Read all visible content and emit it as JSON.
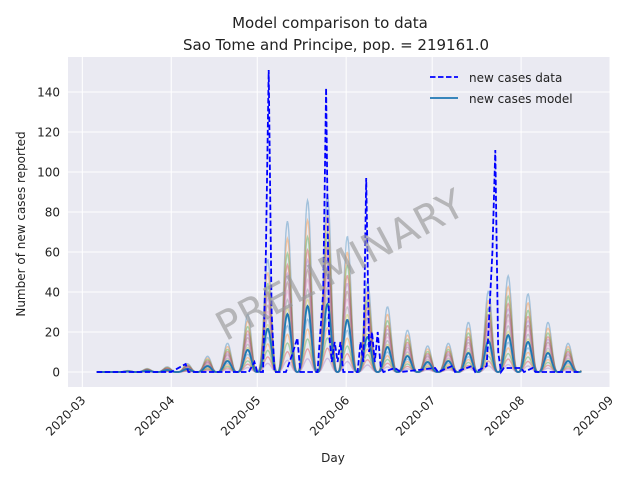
{
  "chart_data": {
    "type": "line",
    "title": "Model comparison to data",
    "subtitle": "Sao Tome and Principe, pop. = 219161.0",
    "xlabel": "Day",
    "ylabel": "Number of new cases reported",
    "xlim": [
      "2020-02-25",
      "2020-09-01"
    ],
    "ylim": [
      -7.5,
      157.5
    ],
    "x_ticks": [
      "2020-03",
      "2020-04",
      "2020-05",
      "2020-06",
      "2020-07",
      "2020-08",
      "2020-09"
    ],
    "y_ticks": [
      0,
      20,
      40,
      60,
      80,
      100,
      120,
      140
    ],
    "grid": true,
    "legend_position": "top-right",
    "watermark": "PRELIMINARY",
    "colors": {
      "background": "#eaeaf2",
      "grid": "#ffffff",
      "data": "#0000ff",
      "model": "#1f77b4",
      "ensemble": [
        "#1f77b4",
        "#ff7f0e",
        "#2ca02c",
        "#d62728",
        "#9467bd",
        "#8c564b",
        "#e377c2",
        "#7f7f7f",
        "#bcbd22",
        "#17becf"
      ]
    },
    "series": [
      {
        "name": "new cases data",
        "style": "dashed",
        "points": [
          [
            "2020-03-06",
            0
          ],
          [
            "2020-04-01",
            0
          ],
          [
            "2020-04-06",
            4
          ],
          [
            "2020-04-07",
            0
          ],
          [
            "2020-04-28",
            0
          ],
          [
            "2020-04-30",
            5
          ],
          [
            "2020-05-01",
            0
          ],
          [
            "2020-05-03",
            0
          ],
          [
            "2020-05-04",
            60
          ],
          [
            "2020-05-05",
            151
          ],
          [
            "2020-05-06",
            30
          ],
          [
            "2020-05-07",
            0
          ],
          [
            "2020-05-11",
            0
          ],
          [
            "2020-05-13",
            8
          ],
          [
            "2020-05-15",
            17
          ],
          [
            "2020-05-16",
            0
          ],
          [
            "2020-05-22",
            0
          ],
          [
            "2020-05-24",
            40
          ],
          [
            "2020-05-25",
            142
          ],
          [
            "2020-05-26",
            20
          ],
          [
            "2020-05-27",
            5
          ],
          [
            "2020-05-28",
            15
          ],
          [
            "2020-05-29",
            5
          ],
          [
            "2020-05-30",
            15
          ],
          [
            "2020-05-31",
            0
          ],
          [
            "2020-06-05",
            0
          ],
          [
            "2020-06-06",
            15
          ],
          [
            "2020-06-07",
            5
          ],
          [
            "2020-06-08",
            97
          ],
          [
            "2020-06-09",
            10
          ],
          [
            "2020-06-10",
            20
          ],
          [
            "2020-06-11",
            5
          ],
          [
            "2020-06-12",
            20
          ],
          [
            "2020-06-13",
            3
          ],
          [
            "2020-06-14",
            0
          ],
          [
            "2020-06-18",
            2
          ],
          [
            "2020-06-20",
            0
          ],
          [
            "2020-07-02",
            2
          ],
          [
            "2020-07-03",
            0
          ],
          [
            "2020-07-08",
            3
          ],
          [
            "2020-07-09",
            0
          ],
          [
            "2020-07-15",
            3
          ],
          [
            "2020-07-16",
            0
          ],
          [
            "2020-07-20",
            3
          ],
          [
            "2020-07-22",
            60
          ],
          [
            "2020-07-23",
            111
          ],
          [
            "2020-07-24",
            10
          ],
          [
            "2020-07-25",
            0
          ],
          [
            "2020-07-26",
            2
          ],
          [
            "2020-08-01",
            2
          ],
          [
            "2020-08-02",
            0
          ],
          [
            "2020-08-05",
            2
          ],
          [
            "2020-08-06",
            0
          ],
          [
            "2020-08-21",
            0
          ]
        ]
      },
      {
        "name": "new cases model",
        "style": "solid",
        "shape": "weekly-pulses",
        "start": "2020-03-06",
        "end": "2020-08-22",
        "period_days": 7,
        "peaks": [
          [
            "2020-03-06",
            0
          ],
          [
            "2020-03-13",
            0
          ],
          [
            "2020-03-20",
            0.5
          ],
          [
            "2020-03-27",
            0.8
          ],
          [
            "2020-04-03",
            1.2
          ],
          [
            "2020-04-10",
            2
          ],
          [
            "2020-04-17",
            4
          ],
          [
            "2020-04-24",
            7
          ],
          [
            "2020-05-01",
            15
          ],
          [
            "2020-05-08",
            28
          ],
          [
            "2020-05-15",
            30
          ],
          [
            "2020-05-22",
            36
          ],
          [
            "2020-05-29",
            32
          ],
          [
            "2020-06-05",
            20
          ],
          [
            "2020-06-12",
            15
          ],
          [
            "2020-06-19",
            10
          ],
          [
            "2020-06-26",
            6
          ],
          [
            "2020-07-03",
            4
          ],
          [
            "2020-07-10",
            7
          ],
          [
            "2020-07-17",
            12
          ],
          [
            "2020-07-24",
            19
          ],
          [
            "2020-07-31",
            18
          ],
          [
            "2020-08-07",
            12
          ],
          [
            "2020-08-14",
            7
          ],
          [
            "2020-08-21",
            4
          ]
        ],
        "ensemble_scale": [
          0.2,
          0.35,
          0.5,
          0.65,
          0.8,
          0.95,
          1.1,
          1.25,
          1.4,
          1.55,
          1.7,
          1.85,
          2.05,
          2.3,
          2.6
        ]
      }
    ]
  }
}
